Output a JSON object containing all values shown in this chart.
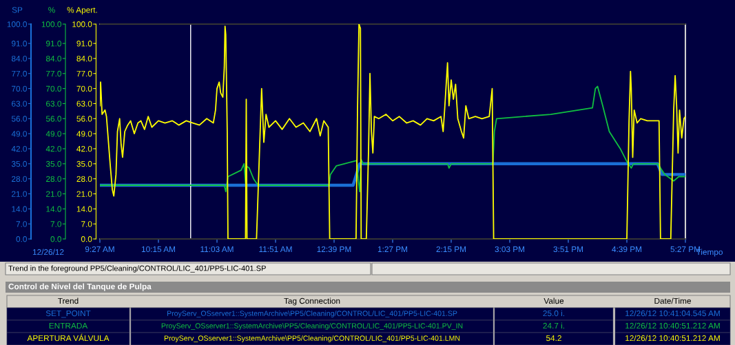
{
  "chart_data": {
    "type": "line",
    "xlabel": "Tiempo",
    "ylabel": "SP",
    "y2label": "% Apert.",
    "y3label": "%",
    "xlim": [
      9.45,
      17.45
    ],
    "xticks": [
      {
        "value": 9.45,
        "label": "9:27 AM"
      },
      {
        "value": 10.25,
        "label": "10:15 AM"
      },
      {
        "value": 11.05,
        "label": "11:03 AM"
      },
      {
        "value": 11.85,
        "label": "11:51 AM"
      },
      {
        "value": 12.65,
        "label": "12:39 PM"
      },
      {
        "value": 13.45,
        "label": "1:27 PM"
      },
      {
        "value": 14.25,
        "label": "2:15 PM"
      },
      {
        "value": 15.05,
        "label": "3:03 PM"
      },
      {
        "value": 15.85,
        "label": "3:51 PM"
      },
      {
        "value": 16.65,
        "label": "4:39 PM"
      },
      {
        "value": 17.45,
        "label": "5:27 PM"
      }
    ],
    "ylim": [
      0,
      100
    ],
    "yticks": [
      {
        "value": 0,
        "label": "0.0"
      },
      {
        "value": 7,
        "label": "7.0"
      },
      {
        "value": 14,
        "label": "14.0"
      },
      {
        "value": 21,
        "label": "21.0"
      },
      {
        "value": 28,
        "label": "28.0"
      },
      {
        "value": 35,
        "label": "35.0"
      },
      {
        "value": 42,
        "label": "42.0"
      },
      {
        "value": 49,
        "label": "49.0"
      },
      {
        "value": 56,
        "label": "56.0"
      },
      {
        "value": 63,
        "label": "63.0"
      },
      {
        "value": 70,
        "label": "70.0"
      },
      {
        "value": 77,
        "label": "77.0"
      },
      {
        "value": 84,
        "label": "84.0"
      },
      {
        "value": 91,
        "label": "91.0"
      },
      {
        "value": 100,
        "label": "100.0"
      }
    ],
    "y2lim": [
      0,
      100
    ],
    "y2ticks": [
      {
        "value": 0,
        "label": "0.0"
      },
      {
        "value": 7,
        "label": "7.0"
      },
      {
        "value": 14,
        "label": "14.0"
      },
      {
        "value": 21,
        "label": "21.0"
      },
      {
        "value": 28,
        "label": "28.0"
      },
      {
        "value": 35,
        "label": "35.0"
      },
      {
        "value": 42,
        "label": "42.0"
      },
      {
        "value": 49,
        "label": "49.0"
      },
      {
        "value": 56,
        "label": "56.0"
      },
      {
        "value": 63,
        "label": "63.0"
      },
      {
        "value": 70,
        "label": "70.0"
      },
      {
        "value": 77,
        "label": "77.0"
      },
      {
        "value": 84,
        "label": "84.0"
      },
      {
        "value": 91,
        "label": "91.0"
      },
      {
        "value": 100,
        "label": "100.0"
      }
    ],
    "y3lim": [
      0,
      100
    ],
    "y3ticks": [
      {
        "value": 0,
        "label": "0.0"
      },
      {
        "value": 7,
        "label": "7.0"
      },
      {
        "value": 14,
        "label": "14.0"
      },
      {
        "value": 21,
        "label": "21.0"
      },
      {
        "value": 28,
        "label": "28.0"
      },
      {
        "value": 35,
        "label": "35.0"
      },
      {
        "value": 42,
        "label": "42.0"
      },
      {
        "value": 49,
        "label": "49.0"
      },
      {
        "value": 56,
        "label": "56.0"
      },
      {
        "value": 63,
        "label": "63.0"
      },
      {
        "value": 70,
        "label": "70.0"
      },
      {
        "value": 77,
        "label": "77.0"
      },
      {
        "value": 84,
        "label": "84.0"
      },
      {
        "value": 91,
        "label": "91.0"
      },
      {
        "value": 100,
        "label": "100.0"
      }
    ],
    "ref_lines": [
      {
        "axis": "x",
        "value": 10.69,
        "color": "#ffffff"
      }
    ],
    "grid": false,
    "legend": false,
    "series": [
      {
        "name": "SET_POINT",
        "color": "#1a6fd6",
        "axis": "y",
        "x": [
          9.45,
          12.91,
          13.0,
          17.07,
          17.13,
          17.45
        ],
        "values": [
          25,
          25,
          35,
          35,
          30,
          30
        ]
      },
      {
        "name": "ENTRADA",
        "color": "#10c040",
        "axis": "y3",
        "x": [
          9.45,
          9.97,
          10.91,
          11.15,
          11.17,
          11.2,
          11.38,
          11.42,
          11.44,
          11.45,
          11.49,
          11.55,
          11.61,
          12.58,
          12.6,
          12.68,
          12.79,
          12.96,
          12.98,
          13.0,
          13.02,
          13.05,
          13.17,
          14.2,
          14.22,
          14.25,
          14.82,
          14.84,
          14.87,
          15.61,
          16.18,
          16.22,
          16.25,
          16.32,
          16.41,
          16.56,
          16.65,
          16.71,
          16.74,
          17.07,
          17.17,
          17.29,
          17.36,
          17.45
        ],
        "values": [
          25,
          25,
          25,
          25,
          22,
          29,
          32,
          35,
          26,
          34,
          33,
          28,
          25,
          25,
          30,
          34,
          35,
          36.5,
          28,
          22,
          37,
          35,
          35,
          35,
          33,
          35,
          35,
          50,
          56,
          58,
          61,
          70,
          71,
          62,
          50,
          42,
          36,
          33,
          35,
          35,
          30,
          27,
          29,
          29
        ]
      },
      {
        "name": "APERTURA VÁLVULA",
        "color": "#ffff00",
        "axis": "y2",
        "x": [
          9.45,
          9.46,
          9.48,
          9.52,
          9.54,
          9.59,
          9.62,
          9.64,
          9.67,
          9.69,
          9.72,
          9.74,
          9.76,
          9.79,
          9.83,
          9.87,
          9.92,
          9.97,
          10.01,
          10.06,
          10.11,
          10.16,
          10.25,
          10.34,
          10.44,
          10.53,
          10.63,
          10.72,
          10.81,
          10.91,
          11.0,
          11.03,
          11.05,
          11.08,
          11.1,
          11.13,
          11.15,
          11.16,
          11.17,
          11.19,
          11.2,
          11.44,
          11.45,
          11.46,
          11.59,
          11.62,
          11.66,
          11.69,
          11.72,
          11.76,
          11.85,
          11.94,
          12.04,
          12.13,
          12.23,
          12.32,
          12.41,
          12.46,
          12.51,
          12.57,
          12.59,
          12.95,
          12.97,
          12.99,
          13.01,
          13.02,
          13.09,
          13.12,
          13.14,
          13.16,
          13.18,
          13.2,
          13.26,
          13.36,
          13.45,
          13.54,
          13.64,
          13.73,
          13.83,
          13.92,
          14.01,
          14.11,
          14.14,
          14.16,
          14.2,
          14.22,
          14.25,
          14.28,
          14.31,
          14.34,
          14.39,
          14.42,
          14.45,
          14.49,
          14.58,
          14.67,
          14.77,
          14.81,
          14.83,
          16.65,
          16.68,
          16.7,
          16.71,
          16.73,
          16.75,
          16.79,
          16.84,
          16.93,
          17.09,
          17.11,
          17.25,
          17.29,
          17.31,
          17.33,
          17.35,
          17.37,
          17.4,
          17.43,
          17.45
        ],
        "values": [
          62,
          73,
          58,
          60,
          57,
          35,
          23,
          20,
          30,
          50,
          56,
          44,
          38,
          50,
          53,
          55,
          49,
          54,
          55,
          51,
          57,
          52,
          55,
          54,
          55,
          53,
          55,
          54,
          53,
          56,
          54,
          60,
          70,
          73,
          68,
          66,
          80,
          99,
          95,
          50,
          0,
          0,
          65,
          0,
          0,
          30,
          70,
          45,
          58,
          52,
          55,
          51,
          56,
          52,
          54,
          50,
          56,
          48,
          55,
          52,
          0,
          0,
          60,
          100,
          98,
          0,
          0,
          40,
          77,
          50,
          40,
          57,
          56,
          58,
          55,
          57,
          54,
          55,
          53,
          56,
          55,
          57,
          50,
          60,
          82,
          62,
          74,
          65,
          72,
          56,
          50,
          47,
          62,
          56,
          57,
          56,
          57,
          70,
          0,
          0,
          55,
          78,
          70,
          38,
          60,
          54,
          56,
          55,
          55,
          0,
          0,
          60,
          76,
          62,
          40,
          60,
          47,
          56,
          57
        ]
      }
    ],
    "annotations": [
      "12/26/12",
      "Trend in the foreground PP5/Cleaning/CONTROL/LIC_401/PP5-LIC-401.SP",
      "Control de Nivel del Tanque de Pulpa",
      "Trend",
      "Tag Connection",
      "Value",
      "Date/Time",
      "ProyServ_OSserver1::SystemArchive\\PP5/Cleaning/CONTROL/LIC_401/PP5-LIC-401.SP",
      "25.0 i.",
      "12/26/12 10:41:04.545 AM",
      "ProyServ_OSserver1::SystemArchive\\PP5/Cleaning/CONTROL/LIC_401/PP5-LIC-401.PV_IN",
      "24.7 i.",
      "12/26/12 10:40:51.212 AM",
      "ProyServ_OSserver1::SystemArchive\\PP5/Cleaning/CONTROL/LIC_401/PP5-LIC-401.LMN",
      "54.2",
      "12/26/12 10:40:51.212 AM"
    ]
  }
}
